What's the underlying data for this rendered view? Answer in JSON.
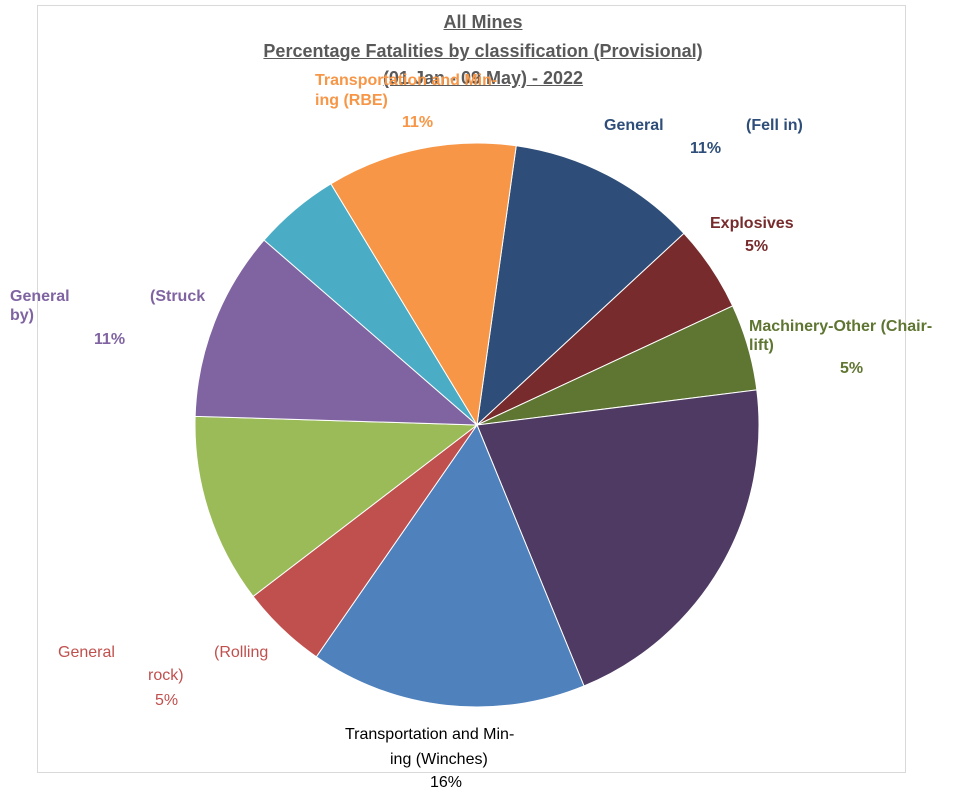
{
  "chart_data": {
    "type": "pie",
    "title": [
      "All Mines",
      "Percentage Fatalities by classification (Provisional)",
      "(01 Jan - 09 May) - 2022"
    ],
    "slices": [
      {
        "name": "General (Fell in)",
        "value": 11,
        "color": "#2e4e79",
        "label_lines": [
          "General",
          "(Fell in)"
        ],
        "pct": "11%"
      },
      {
        "name": "Explosives",
        "value": 5,
        "color": "#772b2c",
        "label_lines": [
          "Explosives"
        ],
        "pct": "5%"
      },
      {
        "name": "Machinery-Other (Chair-lift)",
        "value": 5,
        "color": "#5f7532",
        "label_lines": [
          "Machinery-Other (Chair-",
          "lift)"
        ],
        "pct": "5%"
      },
      {
        "name": "",
        "value": 21,
        "color": "#4e3a62",
        "label_lines": [],
        "pct": ""
      },
      {
        "name": "Transportation and Mining (Winches)",
        "value": 16,
        "color": "#4f81bd",
        "label_lines": [
          "Transportation and Min-",
          "ing (Winches)"
        ],
        "pct": "16%"
      },
      {
        "name": "General (Rolling rock)",
        "value": 5,
        "color": "#c0504d",
        "label_lines": [
          "General",
          "(Rolling",
          "rock)"
        ],
        "pct": "5%"
      },
      {
        "name": "",
        "value": 11,
        "color": "#9bbb59",
        "label_lines": [],
        "pct": ""
      },
      {
        "name": "General (Struck by)",
        "value": 11,
        "color": "#8064a2",
        "label_lines": [
          "General",
          "(Struck",
          "by)"
        ],
        "pct": "11%"
      },
      {
        "name": "",
        "value": 5,
        "color": "#4bacc6",
        "label_lines": [],
        "pct": ""
      },
      {
        "name": "Transportation and Mining (RBE)",
        "value": 11,
        "color": "#f79646",
        "label_lines": [
          "Transportation and Min-",
          "ing (RBE)"
        ],
        "pct": "11%"
      }
    ],
    "label_colors": {
      "fell_in": "#2e4e79",
      "explosives": "#772b2c",
      "chairlift": "#5f7532",
      "winches": "#000000",
      "rolling_rock": "#c0504d",
      "struck_by": "#8064a2",
      "rbe": "#f79646"
    },
    "legend": "none"
  }
}
